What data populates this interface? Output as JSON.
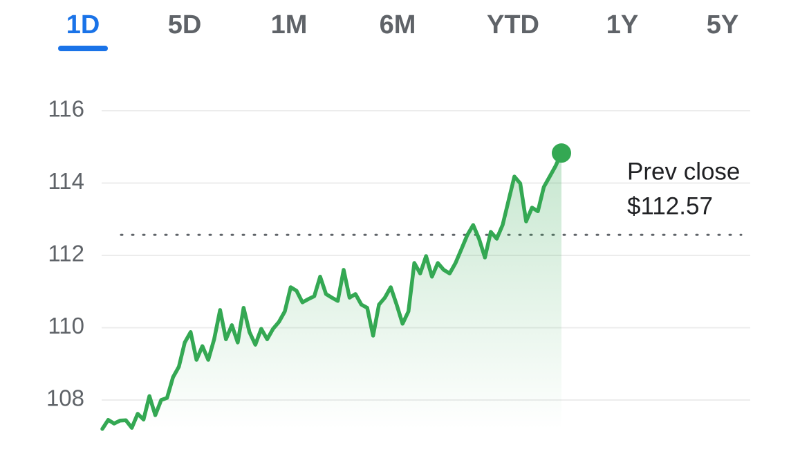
{
  "tabs": [
    "1D",
    "5D",
    "1M",
    "6M",
    "YTD",
    "1Y",
    "5Y"
  ],
  "active_tab": "1D",
  "chart_data": {
    "type": "line",
    "values": [
      107.2,
      107.45,
      107.35,
      107.43,
      107.44,
      107.23,
      107.62,
      107.46,
      108.11,
      107.58,
      108.0,
      108.06,
      108.63,
      108.92,
      109.59,
      109.88,
      109.11,
      109.49,
      109.11,
      109.68,
      110.49,
      109.68,
      110.07,
      109.59,
      110.55,
      109.88,
      109.53,
      109.97,
      109.68,
      109.97,
      110.16,
      110.45,
      111.12,
      111.02,
      110.7,
      110.79,
      110.87,
      111.41,
      110.93,
      110.83,
      110.74,
      111.6,
      110.83,
      110.93,
      110.64,
      110.55,
      109.78,
      110.64,
      110.83,
      111.12,
      110.64,
      110.11,
      110.45,
      111.79,
      111.5,
      111.98,
      111.41,
      111.79,
      111.6,
      111.5,
      111.79,
      112.17,
      112.56,
      112.84,
      112.46,
      111.94,
      112.65,
      112.46,
      112.84,
      113.51,
      114.18,
      113.99,
      112.94,
      113.32,
      113.22,
      113.89,
      114.18,
      114.47,
      114.83
    ],
    "color": "#34a853",
    "ylim": [
      107.2,
      116.8
    ],
    "yticks": [
      108,
      110,
      112,
      114,
      116
    ],
    "grid": true,
    "prev_close_title": "Prev close",
    "prev_close": {
      "value": 112.57,
      "label": "$112.57"
    }
  }
}
